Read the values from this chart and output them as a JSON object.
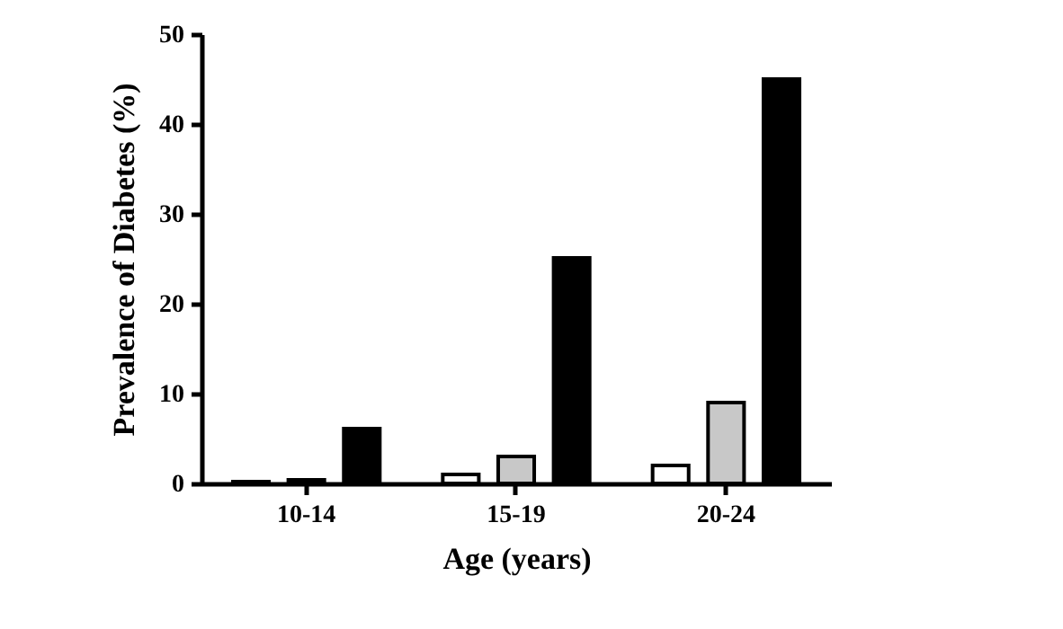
{
  "chart_data": {
    "type": "bar",
    "xlabel": "Age (years)",
    "ylabel": "Prevalence of Diabetes (%)",
    "categories": [
      "10-14",
      "15-19",
      "20-24"
    ],
    "series": [
      {
        "color": "#ffffff",
        "values": [
          0.2,
          1.0,
          2.0
        ]
      },
      {
        "color": "#c8c8c8",
        "values": [
          0.4,
          3.0,
          9.0
        ]
      },
      {
        "color": "#000000",
        "values": [
          6.1,
          25.1,
          45.0
        ]
      }
    ],
    "ylim": [
      0,
      50
    ],
    "yticks": [
      0,
      10,
      20,
      30,
      40,
      50
    ],
    "grid": false
  }
}
